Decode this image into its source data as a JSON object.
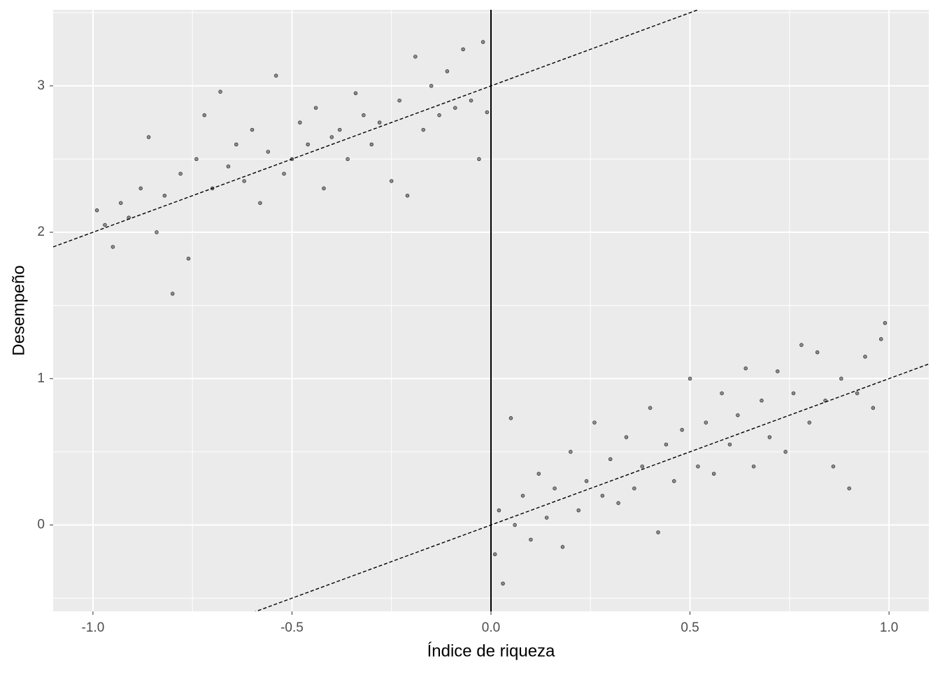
{
  "chart_data": {
    "type": "scatter",
    "x_label": "Índice de riqueza",
    "y_label": "Desempeño",
    "xlim": [
      -1.1,
      1.1
    ],
    "ylim": [
      -0.59,
      3.52
    ],
    "xticks": [
      {
        "value": -1,
        "label": "-1.0"
      },
      {
        "value": -0.5,
        "label": "-0.5"
      },
      {
        "value": 0,
        "label": "0.0"
      },
      {
        "value": 0.5,
        "label": "0.5"
      },
      {
        "value": 1,
        "label": "1.0"
      }
    ],
    "yticks": [
      0,
      1,
      2,
      3
    ],
    "grid": true,
    "color": "#4d4d4d",
    "cutoff": 0,
    "lines": [
      {
        "intercept": 3,
        "slope": 1
      },
      {
        "intercept": 0,
        "slope": 1
      }
    ],
    "x": [
      -0.99,
      -0.97,
      -0.95,
      -0.93,
      -0.91,
      -0.88,
      -0.86,
      -0.84,
      -0.82,
      -0.8,
      -0.78,
      -0.76,
      -0.74,
      -0.72,
      -0.7,
      -0.68,
      -0.66,
      -0.64,
      -0.62,
      -0.6,
      -0.58,
      -0.56,
      -0.54,
      -0.52,
      -0.5,
      -0.48,
      -0.46,
      -0.44,
      -0.42,
      -0.4,
      -0.38,
      -0.36,
      -0.34,
      -0.32,
      -0.3,
      -0.28,
      -0.25,
      -0.23,
      -0.21,
      -0.19,
      -0.17,
      -0.15,
      -0.13,
      -0.11,
      -0.09,
      -0.07,
      -0.05,
      -0.03,
      -0.02,
      -0.01,
      0.01,
      0.02,
      0.03,
      0.05,
      0.06,
      0.08,
      0.1,
      0.12,
      0.14,
      0.16,
      0.18,
      0.2,
      0.22,
      0.24,
      0.26,
      0.28,
      0.3,
      0.32,
      0.34,
      0.36,
      0.38,
      0.4,
      0.42,
      0.44,
      0.46,
      0.48,
      0.5,
      0.52,
      0.54,
      0.56,
      0.58,
      0.6,
      0.62,
      0.64,
      0.66,
      0.68,
      0.7,
      0.72,
      0.74,
      0.76,
      0.78,
      0.8,
      0.82,
      0.84,
      0.86,
      0.88,
      0.9,
      0.92,
      0.94,
      0.96,
      0.98,
      0.99
    ],
    "values": [
      2.15,
      2.05,
      1.9,
      2.2,
      2.1,
      2.3,
      2.65,
      2.0,
      2.25,
      1.58,
      2.4,
      1.82,
      2.5,
      2.8,
      2.3,
      2.96,
      2.45,
      2.6,
      2.35,
      2.7,
      2.2,
      2.55,
      3.07,
      2.4,
      2.5,
      2.75,
      2.6,
      2.85,
      2.3,
      2.65,
      2.7,
      2.5,
      2.95,
      2.8,
      2.6,
      2.75,
      2.35,
      2.9,
      2.25,
      3.2,
      2.7,
      3.0,
      2.8,
      3.1,
      2.85,
      3.25,
      2.9,
      2.5,
      3.3,
      2.82,
      -0.2,
      0.1,
      -0.4,
      0.73,
      0.0,
      0.2,
      -0.1,
      0.35,
      0.05,
      0.25,
      -0.15,
      0.5,
      0.1,
      0.3,
      0.7,
      0.2,
      0.45,
      0.15,
      0.6,
      0.25,
      0.4,
      0.8,
      -0.05,
      0.55,
      0.3,
      0.65,
      1.0,
      0.4,
      0.7,
      0.35,
      0.9,
      0.55,
      0.75,
      1.07,
      0.4,
      0.85,
      0.6,
      1.05,
      0.5,
      0.9,
      1.23,
      0.7,
      1.18,
      0.85,
      0.4,
      1.0,
      0.25,
      0.9,
      1.15,
      0.8,
      1.27,
      1.38
    ]
  }
}
